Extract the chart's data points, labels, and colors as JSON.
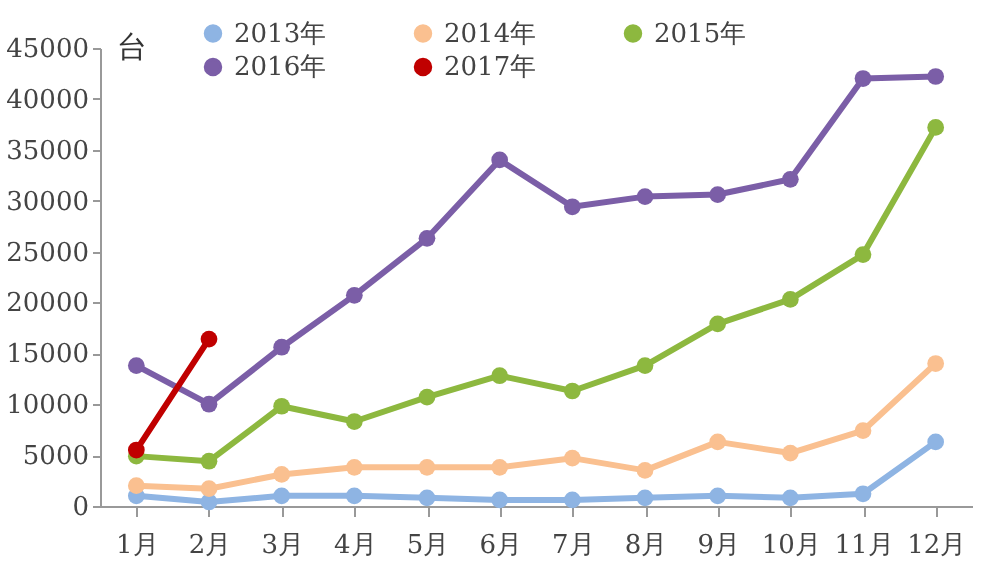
{
  "chart_data": {
    "type": "line",
    "ylabel": "台",
    "categories": [
      "1月",
      "2月",
      "3月",
      "4月",
      "5月",
      "6月",
      "7月",
      "8月",
      "9月",
      "10月",
      "11月",
      "12月"
    ],
    "series": [
      {
        "name": "2013年",
        "color": "#8eb4e3",
        "values": [
          1000,
          400,
          1000,
          1000,
          800,
          600,
          600,
          800,
          1000,
          800,
          1200,
          6300
        ]
      },
      {
        "name": "2014年",
        "color": "#fac090",
        "values": [
          2000,
          1700,
          3100,
          3800,
          3800,
          3800,
          4700,
          3500,
          6300,
          5200,
          7400,
          14000
        ]
      },
      {
        "name": "2015年",
        "color": "#8db83f",
        "values": [
          4900,
          4400,
          9800,
          8300,
          10700,
          12800,
          11300,
          13800,
          17900,
          20300,
          24700,
          37200
        ]
      },
      {
        "name": "2016年",
        "color": "#7b5ea7",
        "values": [
          13800,
          10000,
          15600,
          20700,
          26300,
          34000,
          29400,
          30400,
          30600,
          32100,
          42000,
          42200
        ]
      },
      {
        "name": "2017年",
        "color": "#c00000",
        "values": [
          5500,
          16400,
          null,
          null,
          null,
          null,
          null,
          null,
          null,
          null,
          null,
          null
        ]
      }
    ],
    "ylim": [
      0,
      45000
    ],
    "yticks": [
      0,
      5000,
      10000,
      15000,
      20000,
      25000,
      30000,
      35000,
      40000,
      45000
    ],
    "grid": false,
    "legend": "top",
    "marker": "circle",
    "line_style": "solid"
  }
}
